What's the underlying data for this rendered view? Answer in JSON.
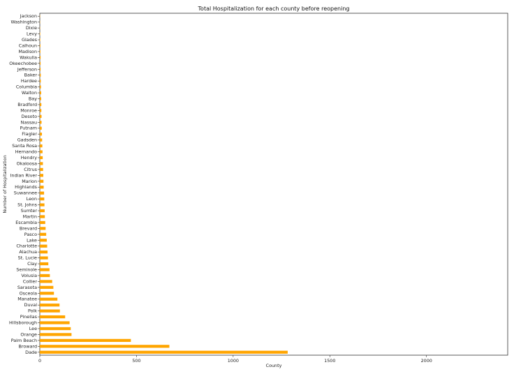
{
  "chart_data": {
    "type": "bar",
    "orientation": "horizontal",
    "title": "Total Hospitalization for each county before reopening",
    "xlabel": "County",
    "ylabel": "Number of Hospitalization",
    "xlim": [
      0,
      2420
    ],
    "xticks": [
      0,
      500,
      1000,
      1500,
      2000
    ],
    "bar_color": "#FFA500",
    "grid": false,
    "categories": [
      "Jackson",
      "Washington",
      "Dixie",
      "Levy",
      "Glades",
      "Calhoun",
      "Madison",
      "Wakulla",
      "Okeechobee",
      "Jefferson",
      "Baker",
      "Hardee",
      "Columbia",
      "Walton",
      "Bay",
      "Bradford",
      "Monroe",
      "Desoto",
      "Nassau",
      "Putnam",
      "Flagler",
      "Gadsden",
      "Santa Rosa",
      "Hernando",
      "Hendry",
      "Okaloosa",
      "Citrus",
      "Indian River",
      "Marion",
      "Highlands",
      "Suwannee",
      "Leon",
      "St. Johns",
      "Sumter",
      "Martin",
      "Escambia",
      "Brevard",
      "Pasco",
      "Lake",
      "Charlotte",
      "Alachua",
      "St. Lucie",
      "Clay",
      "Seminole",
      "Volusia",
      "Collier",
      "Sarasota",
      "Osceola",
      "Manatee",
      "Duval",
      "Polk",
      "Pinellas",
      "Hillsborough",
      "Lee",
      "Orange",
      "Palm Beach",
      "Broward",
      "Dade"
    ],
    "values": [
      1,
      1,
      1,
      2,
      2,
      3,
      3,
      4,
      4,
      4,
      5,
      5,
      6,
      7,
      7,
      8,
      8,
      9,
      9,
      10,
      11,
      12,
      13,
      14,
      15,
      16,
      17,
      18,
      19,
      20,
      22,
      23,
      24,
      25,
      26,
      28,
      30,
      33,
      36,
      38,
      40,
      42,
      44,
      50,
      52,
      64,
      70,
      73,
      91,
      102,
      104,
      131,
      154,
      160,
      164,
      471,
      670,
      1282
    ]
  }
}
